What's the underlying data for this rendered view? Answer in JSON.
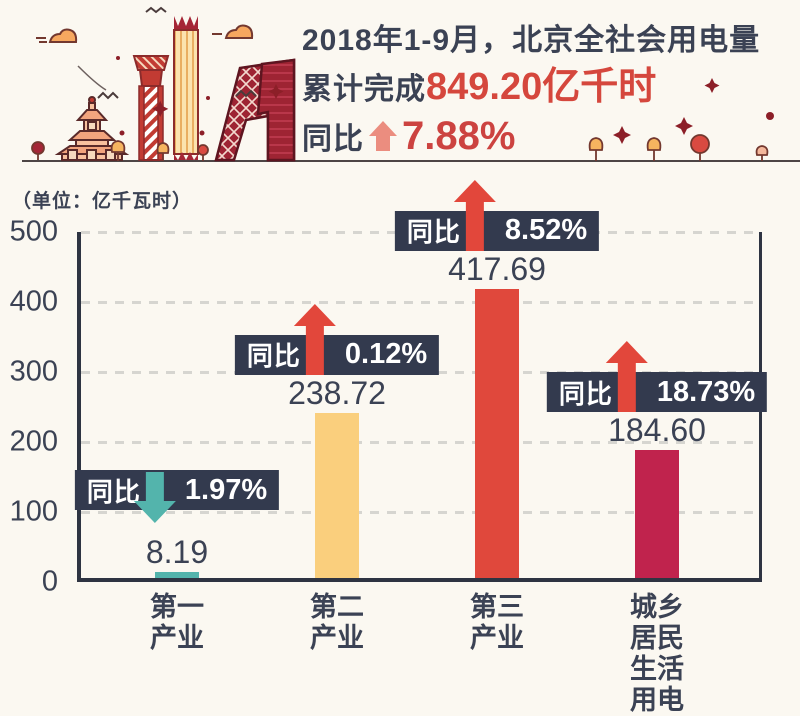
{
  "page": {
    "background": "#FBF8F1"
  },
  "header": {
    "title_line1": "2018年1-9月，北京全社会用电量",
    "line2_prefix": "累计完成",
    "line2_value": "849.20亿千时",
    "line3_prefix": "同比",
    "line3_value": "7.88%",
    "arrow_icon": "arrow-up",
    "arrow_color": "#EB8D7F",
    "text_color": "#3B4254",
    "accent_color": "#D5473D",
    "illustration": "beijing-skyline"
  },
  "chart": {
    "unit_label": "（单位：亿千瓦时）",
    "ytick_labels": [
      "500",
      "400",
      "300",
      "200",
      "100",
      "0"
    ]
  },
  "chart_data": {
    "type": "bar",
    "title": "2018年1-9月，北京全社会用电量累计完成849.20亿千时，同比增长7.88%",
    "unit": "亿千瓦时",
    "categories": [
      "第一产业",
      "第二产业",
      "第三产业",
      "城乡居民生活用电"
    ],
    "values": [
      8.19,
      238.72,
      417.69,
      184.6
    ],
    "ylim": [
      0,
      500
    ],
    "yticks": [
      0,
      100,
      200,
      300,
      400,
      500
    ],
    "grid": "dashed-horizontal",
    "legend": "none",
    "axis_color": "#2E3442",
    "label_color": "#3B4254",
    "badge_bg": "#333A4E",
    "bars": [
      {
        "category": "第一产业",
        "value": 8.19,
        "value_label": "8.19",
        "yoy_prefix": "同比",
        "yoy_value": "1.97%",
        "yoy_direction": "down",
        "arrow_icon": "arrow-down",
        "color": "#53B4AC",
        "arrow_color": "#53B4AC"
      },
      {
        "category": "第二产业",
        "value": 238.72,
        "value_label": "238.72",
        "yoy_prefix": "同比",
        "yoy_value": "0.12%",
        "yoy_direction": "up",
        "arrow_icon": "arrow-up",
        "color": "#FACF7D",
        "arrow_color": "#E2473B"
      },
      {
        "category": "第三产业",
        "value": 417.69,
        "value_label": "417.69",
        "yoy_prefix": "同比",
        "yoy_value": "8.52%",
        "yoy_direction": "up",
        "arrow_icon": "arrow-up",
        "color": "#E0483C",
        "arrow_color": "#E2473B"
      },
      {
        "category": "城乡居民\n生活用电",
        "value": 184.6,
        "value_label": "184.60",
        "yoy_prefix": "同比",
        "yoy_value": "18.73%",
        "yoy_direction": "up",
        "arrow_icon": "arrow-up",
        "color": "#C0234D",
        "arrow_color": "#E2473B"
      }
    ]
  }
}
